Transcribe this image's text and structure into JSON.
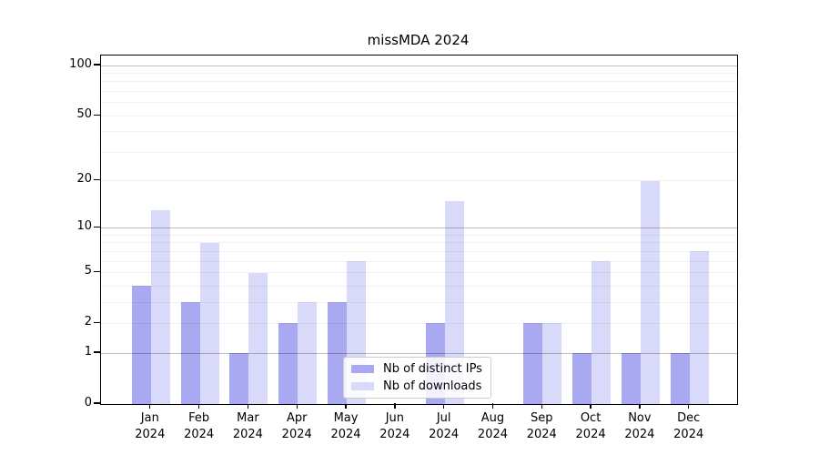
{
  "chart_data": {
    "type": "bar",
    "title": "missMDA 2024",
    "categories": [
      "Jan",
      "Feb",
      "Mar",
      "Apr",
      "May",
      "Jun",
      "Jul",
      "Aug",
      "Sep",
      "Oct",
      "Nov",
      "Dec"
    ],
    "category_year": "2024",
    "series": [
      {
        "name": "Nb of distinct IPs",
        "color": "#a9a9f2",
        "values": [
          4,
          3,
          1,
          2,
          3,
          0,
          2,
          0,
          2,
          1,
          1,
          1
        ]
      },
      {
        "name": "Nb of downloads",
        "color": "#d9d9fa",
        "values": [
          13,
          8,
          5,
          3,
          6,
          0,
          15,
          0,
          2,
          6,
          20,
          7
        ]
      }
    ],
    "xlabel": "",
    "ylabel": "",
    "yscale": "log1p",
    "ylim": [
      0,
      115
    ],
    "yticks": [
      0,
      1,
      2,
      5,
      10,
      20,
      50,
      100
    ],
    "grid": {
      "orientation": "horizontal",
      "major_values": [
        1,
        10,
        100
      ],
      "minor_values": [
        2,
        3,
        4,
        5,
        6,
        7,
        8,
        9,
        20,
        30,
        40,
        50,
        60,
        70,
        80,
        90
      ]
    },
    "legend_position": "lower center"
  }
}
